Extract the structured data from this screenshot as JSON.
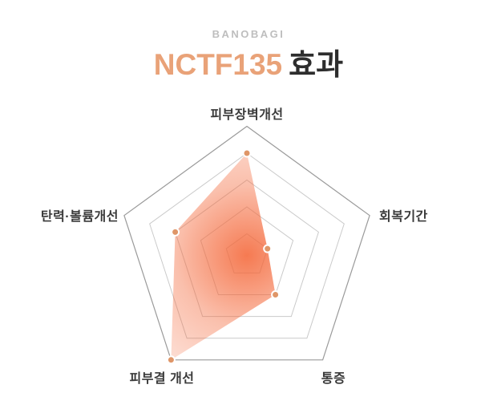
{
  "brand": "BANOBAGI",
  "title": {
    "highlight": "NCTF135",
    "rest": "효과"
  },
  "chart_data": {
    "type": "radar",
    "title": "NCTF135 효과",
    "categories": [
      "피부장벽개선",
      "회복기간",
      "통증",
      "피부결 개선",
      "탄력·볼륨개선"
    ],
    "values": [
      4,
      1,
      2,
      5,
      3
    ],
    "max": 5,
    "levels": 5,
    "ring_fractions": [
      0.168,
      0.376,
      0.584,
      0.792,
      1.0
    ],
    "grid": {
      "outer_color": "#9A9A9A",
      "inner_color": "#CACACA",
      "spokes": false
    },
    "marker": {
      "fill": "#DF9668",
      "stroke": "#FFFFFF",
      "radius": 4.5,
      "stroke_width": 2
    },
    "fill_gradient": {
      "shape": "radial",
      "stops": [
        {
          "offset": 0,
          "color": "#F4683A",
          "opacity": 0.88
        },
        {
          "offset": 0.55,
          "color": "#F4683A",
          "opacity": 0.42
        },
        {
          "offset": 1,
          "color": "#F4683A",
          "opacity": 0.22
        }
      ]
    },
    "legend": "none",
    "axis_ticks_labeled": false
  },
  "colors": {
    "background": "#FFFFFF",
    "brand_text": "#BEBEBE",
    "title_highlight": "#E9A278",
    "title_text": "#2D2D2D",
    "axis_label_text": "#3A3A3A"
  }
}
